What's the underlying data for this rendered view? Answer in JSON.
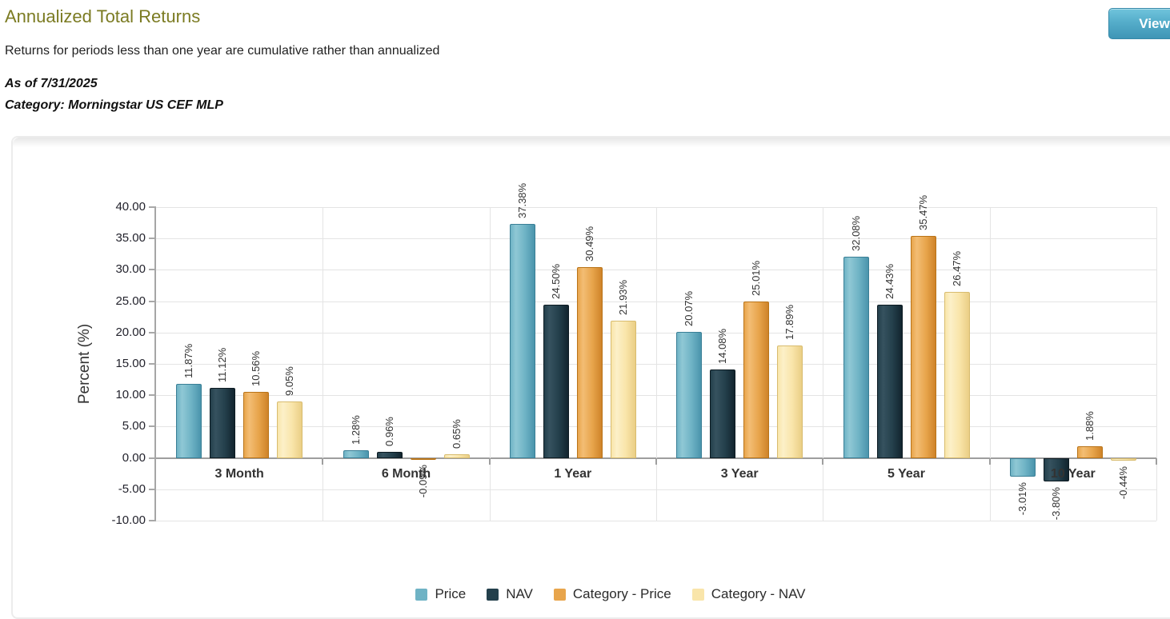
{
  "header": {
    "title": "Annualized Total Returns",
    "subtitle": "Returns for periods less than one year are cumulative rather than annualized",
    "as_of_date": "As of 7/31/2025",
    "category_label": "Category: Morningstar US CEF MLP",
    "view_button_label": "View C",
    "title_color": "#7b7b22",
    "button_color": "#3e95b6"
  },
  "chart_data": {
    "type": "bar",
    "title": "Annualized Total Returns",
    "xlabel": "",
    "ylabel": "Percent (%)",
    "ylim": [
      -10,
      40
    ],
    "y_tick_interval": 5,
    "y_tick_labels": [
      "40.00",
      "35.00",
      "30.00",
      "25.00",
      "20.00",
      "15.00",
      "10.00",
      "5.00",
      "0.00",
      "-5.00",
      "-10.00"
    ],
    "grid": true,
    "legend_position": "bottom",
    "value_label_suffix": "%",
    "categories": [
      "3 Month",
      "6 Month",
      "1 Year",
      "3 Year",
      "5 Year",
      "10 Year"
    ],
    "series": [
      {
        "name": "Price",
        "color": "#6fb3c5",
        "color_light": "#8fc8d5",
        "color_dark": "#4a94ac",
        "border": "#3a7f96",
        "values": [
          11.87,
          1.28,
          37.38,
          20.07,
          32.08,
          -3.01
        ]
      },
      {
        "name": "NAV",
        "color": "#24404c",
        "color_light": "#36525f",
        "color_dark": "#12242e",
        "border": "#0d1b22",
        "values": [
          11.12,
          0.96,
          24.5,
          14.08,
          24.43,
          -3.8
        ]
      },
      {
        "name": "Category - Price",
        "color": "#e8a54c",
        "color_light": "#f3bd74",
        "color_dark": "#ce8329",
        "border": "#b97419",
        "values": [
          10.56,
          -0.09,
          30.49,
          25.01,
          35.47,
          1.88
        ]
      },
      {
        "name": "Category - NAV",
        "color": "#f9e5aa",
        "color_light": "#fcf0c8",
        "color_dark": "#eace85",
        "border": "#d8bc6f",
        "values": [
          9.05,
          0.65,
          21.93,
          17.89,
          26.47,
          -0.44
        ]
      }
    ]
  }
}
